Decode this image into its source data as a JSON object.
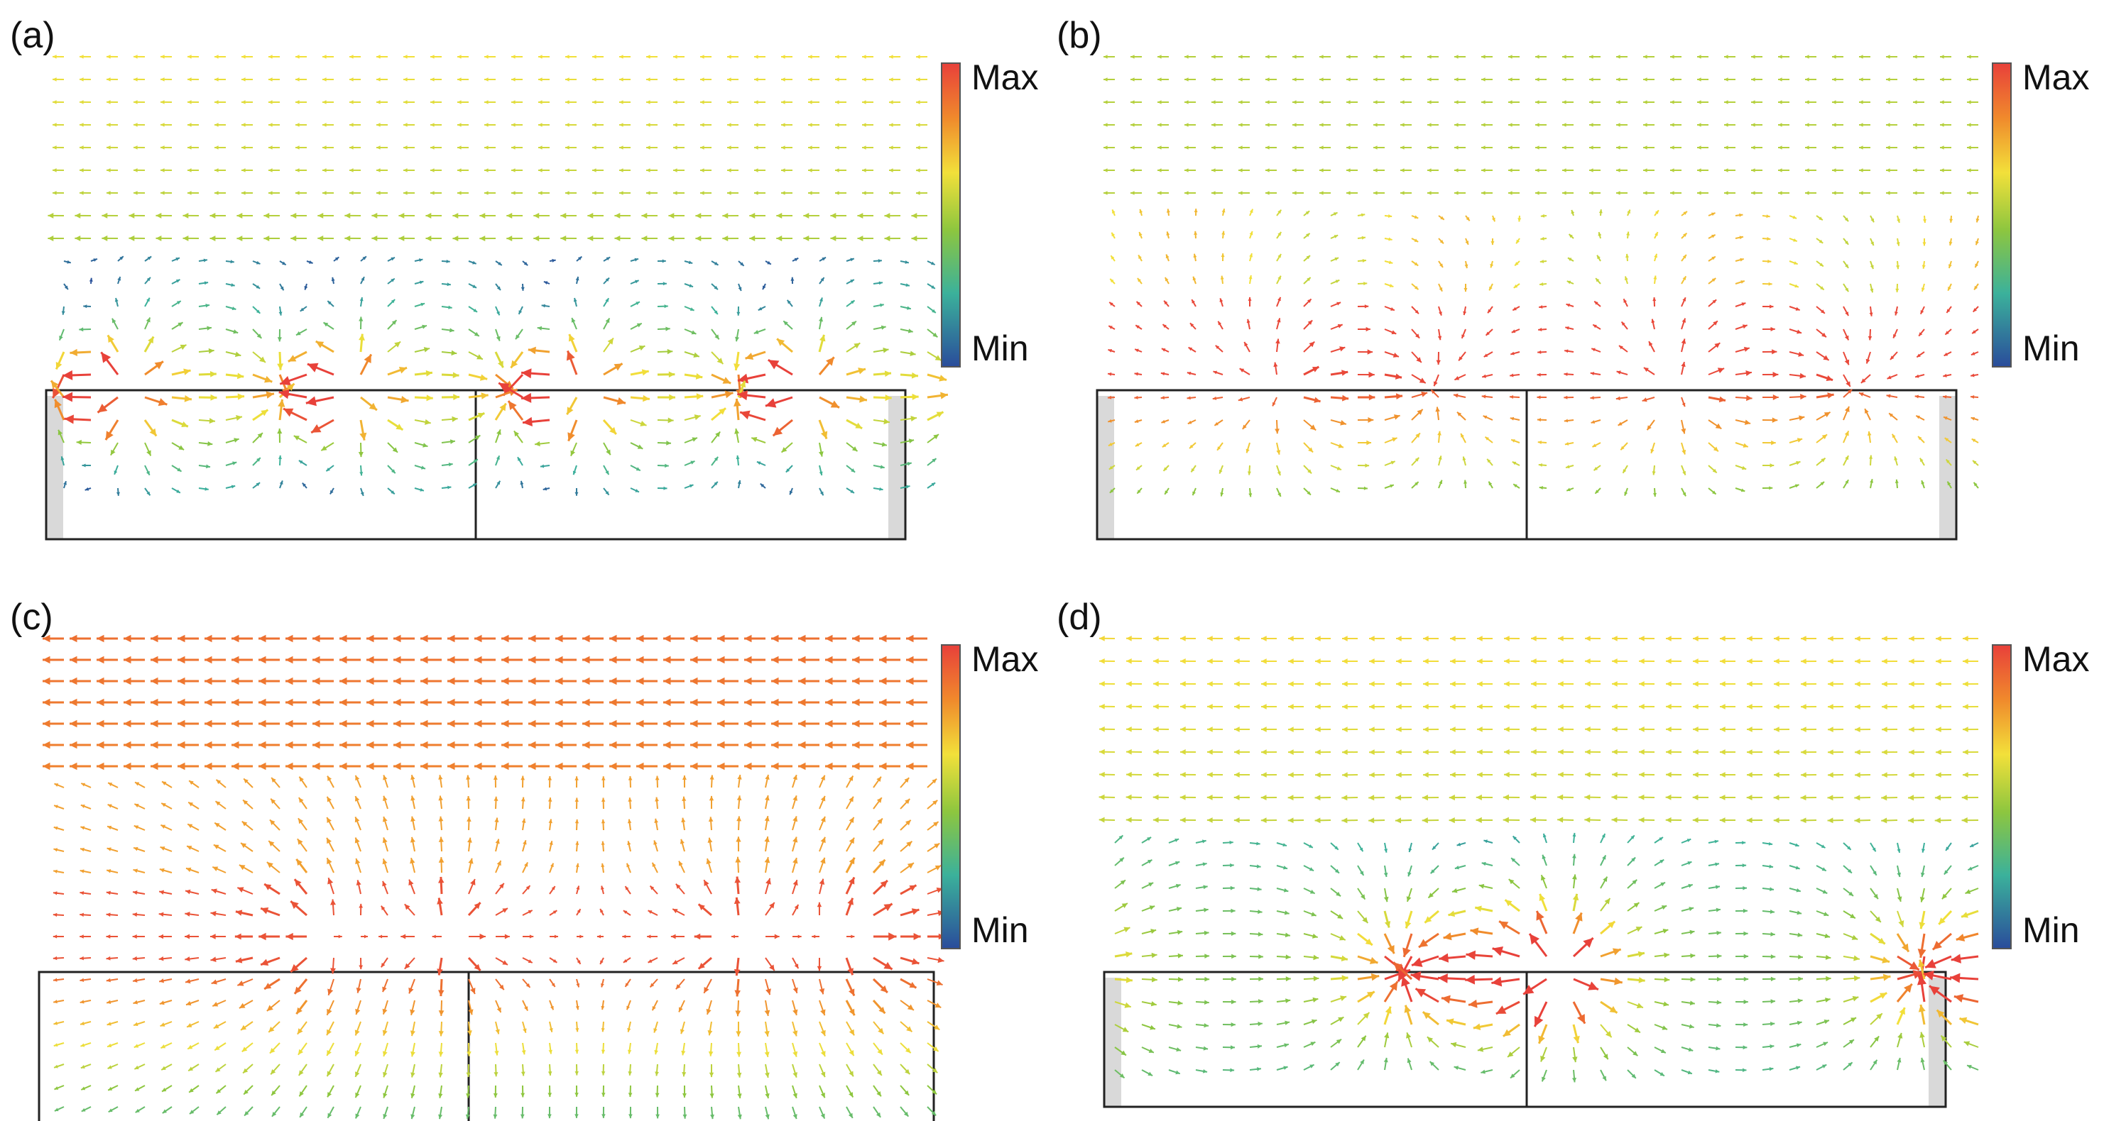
{
  "figure": {
    "colorbar_max_label": "Max",
    "colorbar_min_label": "Min",
    "colormap": [
      "#2a4d9b",
      "#3bb19b",
      "#8dc63f",
      "#f2e03a",
      "#f08a2c",
      "#e8413a"
    ]
  },
  "panels": [
    {
      "id": "a",
      "label": "(a)",
      "mode": "a"
    },
    {
      "id": "b",
      "label": "(b)",
      "mode": "b"
    },
    {
      "id": "c",
      "label": "(c)",
      "mode": "c"
    },
    {
      "id": "d",
      "label": "(d)",
      "mode": "d"
    }
  ]
}
